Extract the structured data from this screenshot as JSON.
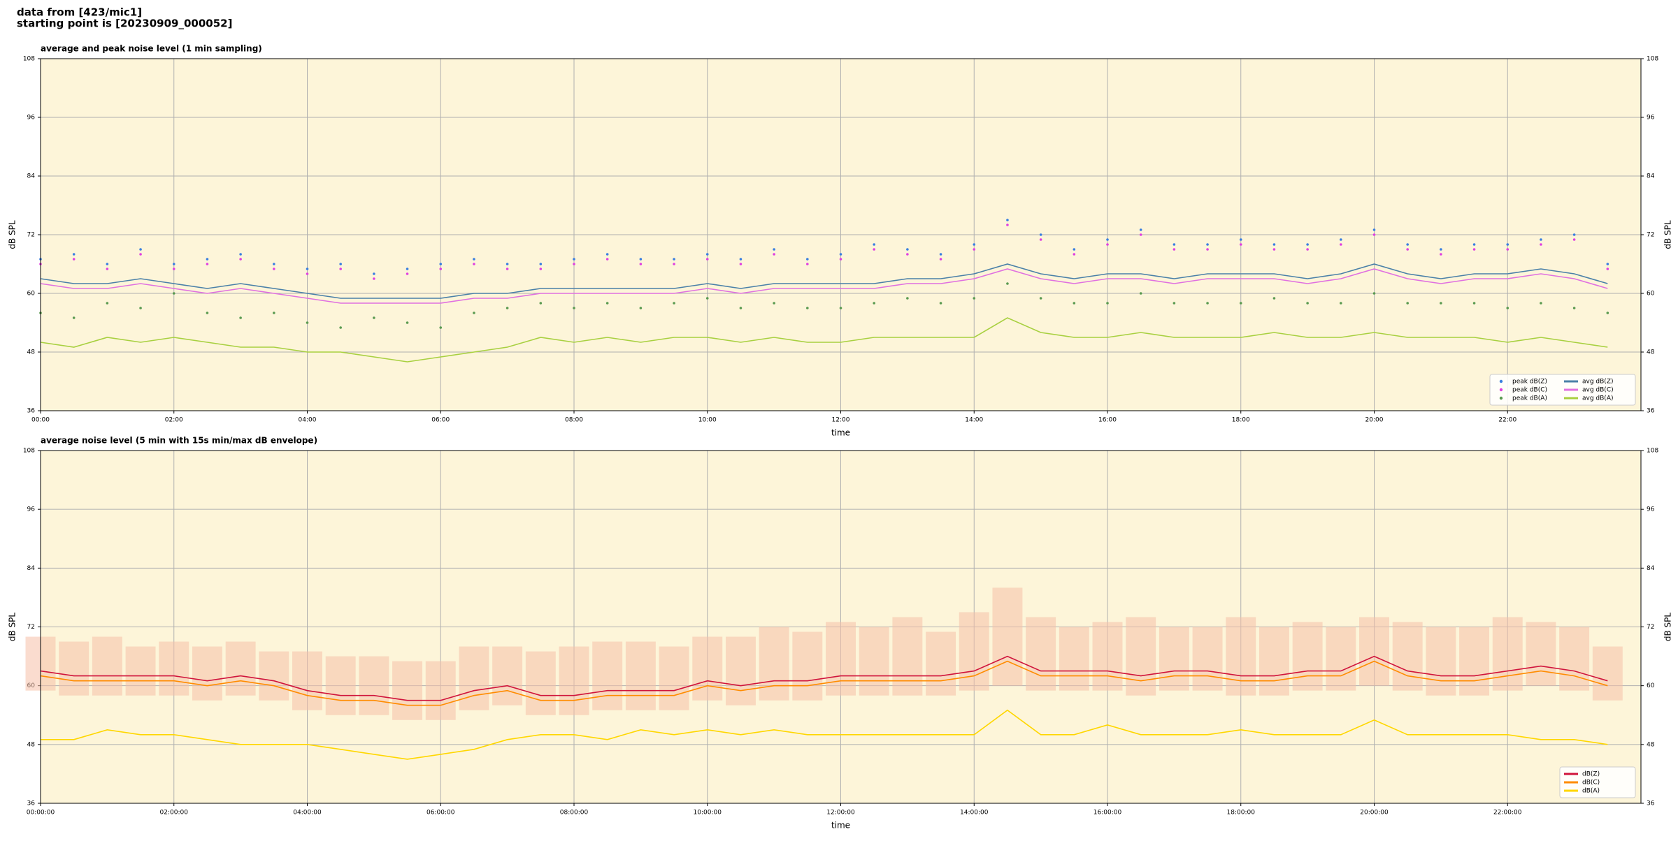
{
  "header": [
    "data from [423/mic1]",
    "starting point is [20230909_000052]"
  ],
  "chart_data": [
    {
      "type": "line",
      "title": "average and peak noise level (1 min sampling)",
      "xlabel": "time",
      "ylabel": "dB SPL",
      "xlim": [
        0,
        24
      ],
      "ylim": [
        36,
        108
      ],
      "yticks": [
        36,
        48,
        60,
        72,
        84,
        96,
        108
      ],
      "xticks": [
        {
          "value": 0,
          "label": "00:00"
        },
        {
          "value": 2,
          "label": "02:00"
        },
        {
          "value": 4,
          "label": "04:00"
        },
        {
          "value": 6,
          "label": "06:00"
        },
        {
          "value": 8,
          "label": "08:00"
        },
        {
          "value": 10,
          "label": "10:00"
        },
        {
          "value": 12,
          "label": "12:00"
        },
        {
          "value": 14,
          "label": "14:00"
        },
        {
          "value": 16,
          "label": "16:00"
        },
        {
          "value": 18,
          "label": "18:00"
        },
        {
          "value": 20,
          "label": "20:00"
        },
        {
          "value": 22,
          "label": "22:00"
        }
      ],
      "grid": true,
      "legend": "lower right",
      "background": "#fdf5d9",
      "x": [
        0,
        0.5,
        1,
        1.5,
        2,
        2.5,
        3,
        3.5,
        4,
        4.5,
        5,
        5.5,
        6,
        6.5,
        7,
        7.5,
        8,
        8.5,
        9,
        9.5,
        10,
        10.5,
        11,
        11.5,
        12,
        12.5,
        13,
        13.5,
        14,
        14.5,
        15,
        15.5,
        16,
        16.5,
        17,
        17.5,
        18,
        18.5,
        19,
        19.5,
        20,
        20.5,
        21,
        21.5,
        22,
        22.5,
        23,
        23.5
      ],
      "series": [
        {
          "name": "peak dB(Z)",
          "kind": "scatter",
          "color": "#3a7fe0",
          "values": [
            67,
            68,
            66,
            69,
            66,
            67,
            68,
            66,
            65,
            66,
            64,
            65,
            66,
            67,
            66,
            66,
            67,
            68,
            67,
            67,
            68,
            67,
            69,
            67,
            68,
            70,
            69,
            68,
            70,
            75,
            72,
            69,
            71,
            73,
            70,
            70,
            71,
            70,
            70,
            71,
            73,
            70,
            69,
            70,
            70,
            71,
            72,
            66
          ]
        },
        {
          "name": "peak dB(C)",
          "kind": "scatter",
          "color": "#e040e0",
          "values": [
            66,
            67,
            65,
            68,
            65,
            66,
            67,
            65,
            64,
            65,
            63,
            64,
            65,
            66,
            65,
            65,
            66,
            67,
            66,
            66,
            67,
            66,
            68,
            66,
            67,
            69,
            68,
            67,
            69,
            74,
            71,
            68,
            70,
            72,
            69,
            69,
            70,
            69,
            69,
            70,
            72,
            69,
            68,
            69,
            69,
            70,
            71,
            65
          ]
        },
        {
          "name": "peak dB(A)",
          "kind": "scatter",
          "color": "#5a9a50",
          "values": [
            56,
            55,
            58,
            57,
            60,
            56,
            55,
            56,
            54,
            53,
            55,
            54,
            53,
            56,
            57,
            58,
            57,
            58,
            57,
            58,
            59,
            57,
            58,
            57,
            57,
            58,
            59,
            58,
            59,
            62,
            59,
            58,
            58,
            60,
            58,
            58,
            58,
            59,
            58,
            58,
            60,
            58,
            58,
            58,
            57,
            58,
            57,
            56
          ]
        },
        {
          "name": "avg dB(Z)",
          "kind": "line",
          "color": "#4a80a8",
          "values": [
            63,
            62,
            62,
            63,
            62,
            61,
            62,
            61,
            60,
            59,
            59,
            59,
            59,
            60,
            60,
            61,
            61,
            61,
            61,
            61,
            62,
            61,
            62,
            62,
            62,
            62,
            63,
            63,
            64,
            66,
            64,
            63,
            64,
            64,
            63,
            64,
            64,
            64,
            63,
            64,
            66,
            64,
            63,
            64,
            64,
            65,
            64,
            62
          ]
        },
        {
          "name": "avg dB(C)",
          "kind": "line",
          "color": "#e070e0",
          "values": [
            62,
            61,
            61,
            62,
            61,
            60,
            61,
            60,
            59,
            58,
            58,
            58,
            58,
            59,
            59,
            60,
            60,
            60,
            60,
            60,
            61,
            60,
            61,
            61,
            61,
            61,
            62,
            62,
            63,
            65,
            63,
            62,
            63,
            63,
            62,
            63,
            63,
            63,
            62,
            63,
            65,
            63,
            62,
            63,
            63,
            64,
            63,
            61
          ]
        },
        {
          "name": "avg dB(A)",
          "kind": "line",
          "color": "#a8d040",
          "values": [
            50,
            49,
            51,
            50,
            51,
            50,
            49,
            49,
            48,
            48,
            47,
            46,
            47,
            48,
            49,
            51,
            50,
            51,
            50,
            51,
            51,
            50,
            51,
            50,
            50,
            51,
            51,
            51,
            51,
            55,
            52,
            51,
            51,
            52,
            51,
            51,
            51,
            52,
            51,
            51,
            52,
            51,
            51,
            51,
            50,
            51,
            50,
            49
          ]
        }
      ]
    },
    {
      "type": "line",
      "title": "average noise level (5 min with 15s min/max dB envelope)",
      "xlabel": "time",
      "ylabel": "dB SPL",
      "xlim": [
        0,
        24
      ],
      "ylim": [
        36,
        108
      ],
      "yticks": [
        36,
        48,
        60,
        72,
        84,
        96,
        108
      ],
      "xticks": [
        {
          "value": 0,
          "label": "00:00:00"
        },
        {
          "value": 2,
          "label": "02:00:00"
        },
        {
          "value": 4,
          "label": "04:00:00"
        },
        {
          "value": 6,
          "label": "06:00:00"
        },
        {
          "value": 8,
          "label": "08:00:00"
        },
        {
          "value": 10,
          "label": "10:00:00"
        },
        {
          "value": 12,
          "label": "12:00:00"
        },
        {
          "value": 14,
          "label": "14:00:00"
        },
        {
          "value": 16,
          "label": "16:00:00"
        },
        {
          "value": 18,
          "label": "18:00:00"
        },
        {
          "value": 20,
          "label": "20:00:00"
        },
        {
          "value": 22,
          "label": "22:00:00"
        }
      ],
      "grid": true,
      "legend": "lower right",
      "background": "#fdf5d9",
      "x": [
        0,
        0.5,
        1,
        1.5,
        2,
        2.5,
        3,
        3.5,
        4,
        4.5,
        5,
        5.5,
        6,
        6.5,
        7,
        7.5,
        8,
        8.5,
        9,
        9.5,
        10,
        10.5,
        11,
        11.5,
        12,
        12.5,
        13,
        13.5,
        14,
        14.5,
        15,
        15.5,
        16,
        16.5,
        17,
        17.5,
        18,
        18.5,
        19,
        19.5,
        20,
        20.5,
        21,
        21.5,
        22,
        22.5,
        23,
        23.5
      ],
      "band": {
        "color": "#f5c0a8",
        "low": [
          59,
          58,
          58,
          58,
          58,
          57,
          58,
          57,
          55,
          54,
          54,
          53,
          53,
          55,
          56,
          54,
          54,
          55,
          55,
          55,
          57,
          56,
          57,
          57,
          58,
          58,
          58,
          58,
          59,
          60,
          59,
          59,
          59,
          58,
          59,
          59,
          58,
          58,
          59,
          59,
          60,
          59,
          58,
          58,
          59,
          60,
          59,
          57
        ],
        "high": [
          70,
          69,
          70,
          68,
          69,
          68,
          69,
          67,
          67,
          66,
          66,
          65,
          65,
          68,
          68,
          67,
          68,
          69,
          69,
          68,
          70,
          70,
          72,
          71,
          73,
          72,
          74,
          71,
          75,
          80,
          74,
          72,
          73,
          74,
          72,
          72,
          74,
          72,
          73,
          72,
          74,
          73,
          72,
          72,
          74,
          73,
          72,
          68
        ]
      },
      "series": [
        {
          "name": "dB(Z)",
          "kind": "line",
          "color": "#d0143c",
          "values": [
            63,
            62,
            62,
            62,
            62,
            61,
            62,
            61,
            59,
            58,
            58,
            57,
            57,
            59,
            60,
            58,
            58,
            59,
            59,
            59,
            61,
            60,
            61,
            61,
            62,
            62,
            62,
            62,
            63,
            66,
            63,
            63,
            63,
            62,
            63,
            63,
            62,
            62,
            63,
            63,
            66,
            63,
            62,
            62,
            63,
            64,
            63,
            61
          ]
        },
        {
          "name": "dB(C)",
          "kind": "line",
          "color": "#ff8c00",
          "values": [
            62,
            61,
            61,
            61,
            61,
            60,
            61,
            60,
            58,
            57,
            57,
            56,
            56,
            58,
            59,
            57,
            57,
            58,
            58,
            58,
            60,
            59,
            60,
            60,
            61,
            61,
            61,
            61,
            62,
            65,
            62,
            62,
            62,
            61,
            62,
            62,
            61,
            61,
            62,
            62,
            65,
            62,
            61,
            61,
            62,
            63,
            62,
            60
          ]
        },
        {
          "name": "dB(A)",
          "kind": "line",
          "color": "#ffd700",
          "values": [
            49,
            49,
            51,
            50,
            50,
            49,
            48,
            48,
            48,
            47,
            46,
            45,
            46,
            47,
            49,
            50,
            50,
            49,
            51,
            50,
            51,
            50,
            51,
            50,
            50,
            50,
            50,
            50,
            50,
            55,
            50,
            50,
            52,
            50,
            50,
            50,
            51,
            50,
            50,
            50,
            53,
            50,
            50,
            50,
            50,
            49,
            49,
            48
          ]
        }
      ]
    }
  ]
}
